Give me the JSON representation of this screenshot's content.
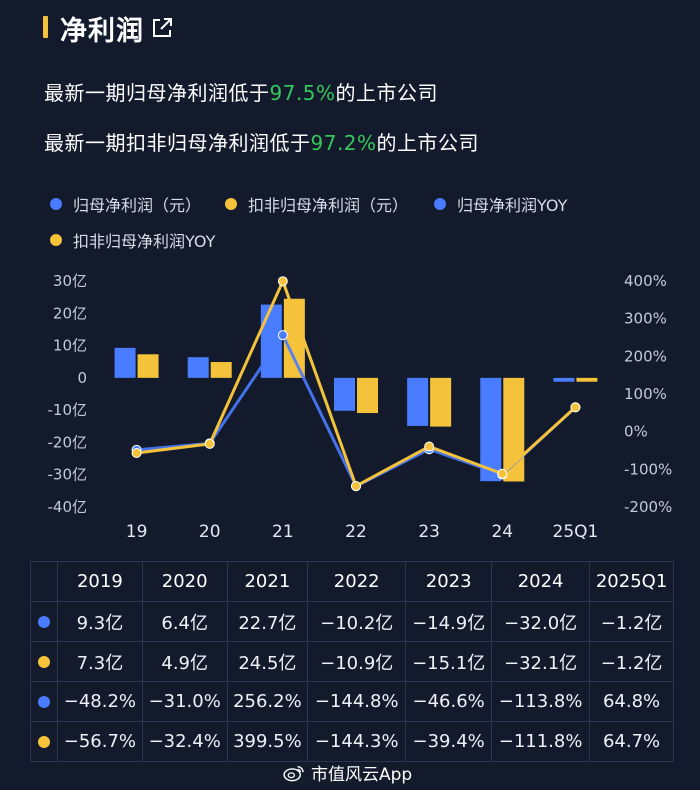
{
  "header": {
    "title": "净利润",
    "icon": "external-link-icon"
  },
  "stats": [
    {
      "prefix": "最新一期归母净利润低于",
      "pct": "97.5%",
      "suffix": "的上市公司"
    },
    {
      "prefix": "最新一期扣非归母净利润低于",
      "pct": "97.2%",
      "suffix": "的上市公司"
    }
  ],
  "colors": {
    "blue": "#4a7cff",
    "yellow": "#f5c33b",
    "accent_title": "#f5c33b",
    "green": "#34c759"
  },
  "chart_data": {
    "type": "bar",
    "categories": [
      "19",
      "20",
      "21",
      "22",
      "23",
      "24",
      "25Q1"
    ],
    "series": [
      {
        "name": "归母净利润（元）",
        "kind": "bar",
        "axis": "left",
        "color": "#4a7cff",
        "values": [
          9.3,
          6.4,
          22.7,
          -10.2,
          -14.9,
          -32.0,
          -1.2
        ]
      },
      {
        "name": "扣非归母净利润（元）",
        "kind": "bar",
        "axis": "left",
        "color": "#f5c33b",
        "values": [
          7.3,
          4.9,
          24.5,
          -10.9,
          -15.1,
          -32.1,
          -1.2
        ]
      },
      {
        "name": "归母净利润YOY",
        "kind": "line",
        "axis": "right",
        "color": "#4a7cff",
        "values": [
          -48.2,
          -31.0,
          256.2,
          -144.8,
          -46.6,
          -113.8,
          64.8
        ]
      },
      {
        "name": "扣非归母净利润YOY",
        "kind": "line",
        "axis": "right",
        "color": "#f5c33b",
        "values": [
          -56.7,
          -32.4,
          399.5,
          -144.3,
          -39.4,
          -111.8,
          64.7
        ]
      }
    ],
    "left_axis": {
      "ticks": [
        "30亿",
        "20亿",
        "10亿",
        "0",
        "-10亿",
        "-20亿",
        "-30亿",
        "-40亿"
      ],
      "range": [
        -40,
        30
      ]
    },
    "right_axis": {
      "ticks": [
        "400%",
        "300%",
        "200%",
        "100%",
        "0%",
        "-100%",
        "-200%"
      ],
      "range": [
        -200,
        400
      ]
    },
    "legend_position": "top"
  },
  "table": {
    "headers": [
      "2019",
      "2020",
      "2021",
      "2022",
      "2023",
      "2024",
      "2025Q1"
    ],
    "rows": [
      {
        "color": "#4a7cff",
        "cells": [
          "9.3亿",
          "6.4亿",
          "22.7亿",
          "−10.2亿",
          "−14.9亿",
          "−32.0亿",
          "−1.2亿"
        ]
      },
      {
        "color": "#f5c33b",
        "cells": [
          "7.3亿",
          "4.9亿",
          "24.5亿",
          "−10.9亿",
          "−15.1亿",
          "−32.1亿",
          "−1.2亿"
        ]
      },
      {
        "color": "#4a7cff",
        "cells": [
          "−48.2%",
          "−31.0%",
          "256.2%",
          "−144.8%",
          "−46.6%",
          "−113.8%",
          "64.8%"
        ]
      },
      {
        "color": "#f5c33b",
        "cells": [
          "−56.7%",
          "−32.4%",
          "399.5%",
          "−144.3%",
          "−39.4%",
          "−111.8%",
          "64.7%"
        ]
      }
    ]
  },
  "watermark": {
    "text": "市值风云App",
    "icon": "weibo-icon"
  }
}
